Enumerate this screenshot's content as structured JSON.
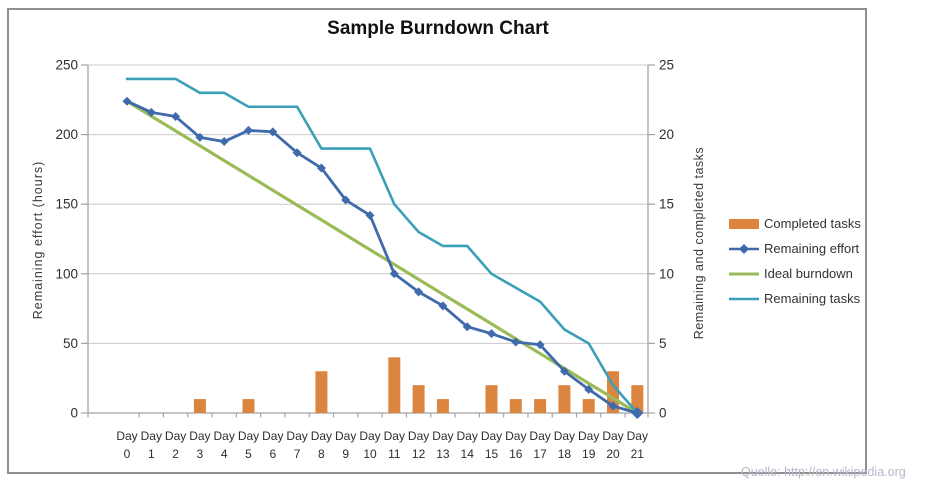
{
  "title": "Sample Burndown Chart",
  "watermark": "Quelle: http://en.wikipedia.org",
  "chart_data": {
    "type": "combo",
    "title": "Sample Burndown Chart",
    "categories": [
      "Day 0",
      "Day 1",
      "Day 2",
      "Day 3",
      "Day 4",
      "Day 5",
      "Day 6",
      "Day 7",
      "Day 8",
      "Day 9",
      "Day 10",
      "Day 11",
      "Day 12",
      "Day 13",
      "Day 14",
      "Day 15",
      "Day 16",
      "Day 17",
      "Day 18",
      "Day 19",
      "Day 20",
      "Day 21"
    ],
    "left_axis": {
      "label": "Remaining effort (hours)",
      "ticks": [
        0,
        50,
        100,
        150,
        200,
        250
      ],
      "range": [
        0,
        250
      ]
    },
    "right_axis": {
      "label": "Remaining and  completed tasks",
      "ticks": [
        0,
        5,
        10,
        15,
        20,
        25
      ],
      "range": [
        0,
        25
      ]
    },
    "grid": true,
    "legend_position": "right",
    "series": [
      {
        "name": "Completed tasks",
        "type": "bar",
        "axis": "right",
        "color": "#dc853f",
        "values": [
          0,
          0,
          0,
          1,
          0,
          1,
          0,
          0,
          3,
          0,
          0,
          4,
          2,
          1,
          0,
          2,
          1,
          1,
          2,
          1,
          3,
          2
        ]
      },
      {
        "name": "Remaining effort",
        "type": "line",
        "marker": "diamond",
        "axis": "left",
        "color": "#3f6bac",
        "values": [
          224,
          216,
          213,
          198,
          195,
          203,
          202,
          187,
          176,
          153,
          142,
          100,
          87,
          77,
          62,
          57,
          51,
          49,
          30,
          17,
          5,
          0
        ]
      },
      {
        "name": "Ideal burndown",
        "type": "line",
        "axis": "left",
        "color": "#9bbb59",
        "values": [
          224,
          213.3,
          202.7,
          192,
          181.3,
          170.7,
          160,
          149.3,
          138.7,
          128,
          117.3,
          106.7,
          96,
          85.3,
          74.7,
          64,
          53.3,
          42.7,
          32,
          21.3,
          10.7,
          0
        ]
      },
      {
        "name": "Remaining tasks",
        "type": "line",
        "axis": "right",
        "color": "#3aa0b8",
        "values": [
          24,
          24,
          24,
          23,
          23,
          22,
          22,
          22,
          19,
          19,
          19,
          15,
          13,
          12,
          12,
          10,
          9,
          8,
          6,
          5,
          2,
          0
        ]
      }
    ],
    "style": {
      "gridline_color": "#c8c8c8",
      "axis_color": "#a3a3a3",
      "tick_label_color": "#2e2e2e",
      "title_color": "#111111"
    }
  }
}
